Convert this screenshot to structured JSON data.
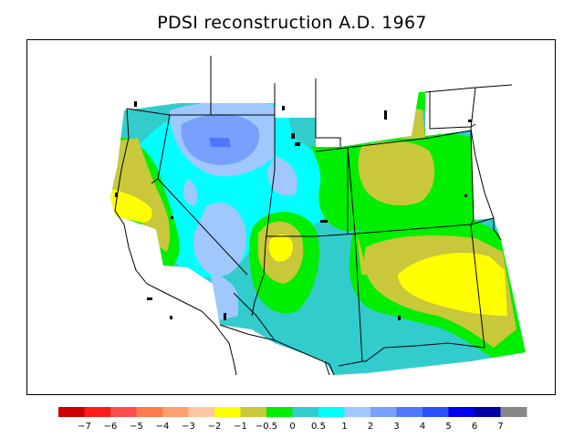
{
  "title": "PDSI reconstruction A.D. 1967",
  "colorbar": {
    "colors": [
      "#cc0000",
      "#ff1a1a",
      "#ff4d4d",
      "#ff7a4a",
      "#ffa070",
      "#ffc8a0",
      "#ffff00",
      "#c8c83a",
      "#00ee00",
      "#33cccc",
      "#00ffff",
      "#a0c8ff",
      "#78a0ff",
      "#5078ff",
      "#2850ff",
      "#0000ee",
      "#0000a8",
      "#888888"
    ],
    "labels": [
      "−7",
      "−6",
      "−5",
      "−4",
      "−3",
      "−2",
      "−1",
      "−0.5",
      "0",
      "0.5",
      "1",
      "2",
      "3",
      "4",
      "5",
      "6",
      "7"
    ]
  }
}
